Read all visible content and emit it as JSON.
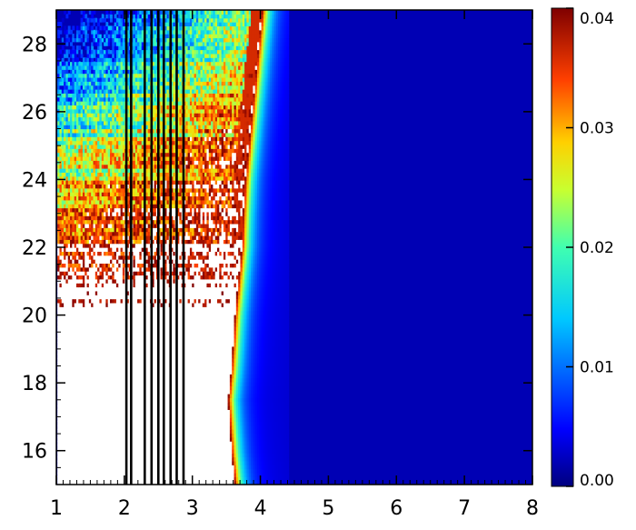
{
  "chart_data": {
    "type": "heatmap",
    "title": "",
    "xlabel": "",
    "ylabel": "",
    "xlim": [
      1,
      8
    ],
    "ylim": [
      15,
      29
    ],
    "x_ticks": [
      "1",
      "2",
      "3",
      "4",
      "5",
      "6",
      "7",
      "8"
    ],
    "y_ticks": [
      "16",
      "18",
      "20",
      "22",
      "24",
      "26",
      "28"
    ],
    "colorbar": {
      "range": [
        0.0,
        0.04
      ],
      "ticks": [
        "0.00",
        "0.01",
        "0.02",
        "0.03",
        "0.04"
      ],
      "colormap": "rainbow (dark blue to dark red)",
      "saturated_color": "#ffffff"
    },
    "vertical_lines_x": [
      2.03,
      2.1,
      2.3,
      2.4,
      2.5,
      2.58,
      2.68,
      2.77,
      2.87
    ],
    "boundary_x_by_y": [
      {
        "y": 15.0,
        "x": 3.6
      },
      {
        "y": 16.0,
        "x": 3.55
      },
      {
        "y": 17.5,
        "x": 3.5
      },
      {
        "y": 18.5,
        "x": 3.55
      },
      {
        "y": 20.0,
        "x": 3.6
      },
      {
        "y": 21.0,
        "x": 3.65
      },
      {
        "y": 22.0,
        "x": 3.7
      },
      {
        "y": 23.0,
        "x": 3.72
      },
      {
        "y": 24.0,
        "x": 3.75
      },
      {
        "y": 25.0,
        "x": 3.8
      },
      {
        "y": 26.0,
        "x": 3.85
      },
      {
        "y": 27.0,
        "x": 3.9
      },
      {
        "y": 28.0,
        "x": 3.95
      },
      {
        "y": 29.0,
        "x": 4.0
      }
    ],
    "background_value": 0.002
  }
}
